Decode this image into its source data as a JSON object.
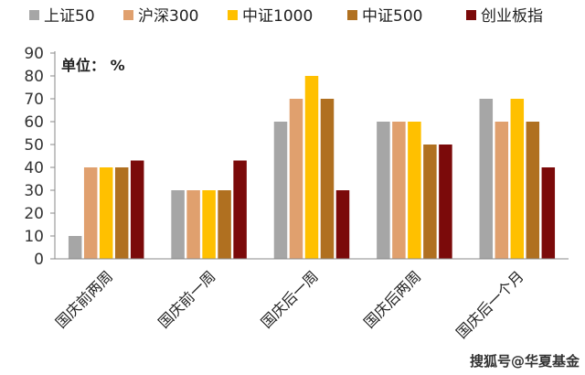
{
  "chart_data": {
    "type": "bar",
    "unit_label": "单位： %",
    "categories": [
      "国庆前两周",
      "国庆前一周",
      "国庆后一周",
      "国庆后两周",
      "国庆后一个月"
    ],
    "series": [
      {
        "name": "上证50",
        "color": "#a6a6a6",
        "values": [
          10,
          30,
          60,
          60,
          70
        ]
      },
      {
        "name": "沪深300",
        "color": "#e0a06e",
        "values": [
          40,
          30,
          70,
          60,
          60
        ]
      },
      {
        "name": "中证1000",
        "color": "#ffc000",
        "values": [
          40,
          30,
          80,
          60,
          70
        ]
      },
      {
        "name": "中证500",
        "color": "#b07020",
        "values": [
          40,
          30,
          70,
          50,
          60
        ]
      },
      {
        "name": "创业板指",
        "color": "#7b0a0a",
        "values": [
          43,
          43,
          30,
          50,
          40
        ]
      }
    ],
    "ylim": [
      0,
      90
    ],
    "yticks": [
      0,
      10,
      20,
      30,
      40,
      50,
      60,
      70,
      80,
      90
    ],
    "grid": false,
    "legend_position": "top"
  },
  "watermark": "搜狐号@华夏基金"
}
